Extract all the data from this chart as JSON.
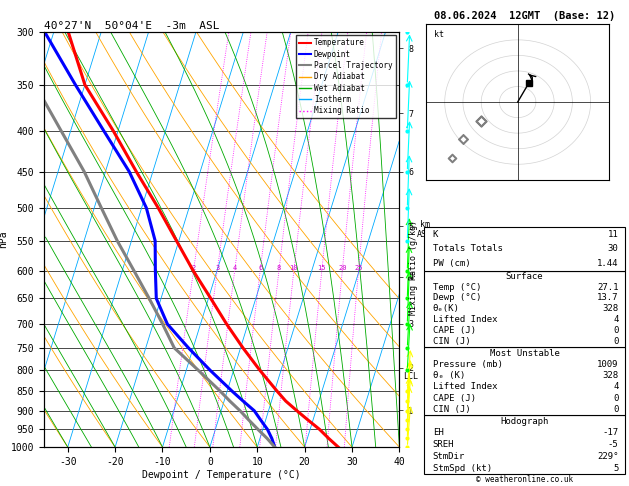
{
  "title_left": "40°27'N  50°04'E  -3m  ASL",
  "title_right": "08.06.2024  12GMT  (Base: 12)",
  "xlabel": "Dewpoint / Temperature (°C)",
  "ylabel_left": "hPa",
  "x_min": -35,
  "x_max": 40,
  "pressure_ticks": [
    300,
    350,
    400,
    450,
    500,
    550,
    600,
    650,
    700,
    750,
    800,
    850,
    900,
    950,
    1000
  ],
  "x_ticks": [
    -30,
    -20,
    -10,
    0,
    10,
    20,
    30,
    40
  ],
  "skew_factor": 22.5,
  "temp_profile_p": [
    1000,
    975,
    950,
    925,
    900,
    875,
    850,
    800,
    750,
    700,
    650,
    600,
    550,
    500,
    450,
    400,
    350,
    300
  ],
  "temp_profile_t": [
    27.1,
    24.5,
    22.0,
    19.0,
    16.0,
    13.0,
    10.5,
    5.5,
    0.5,
    -4.5,
    -9.5,
    -15.0,
    -20.5,
    -26.5,
    -33.5,
    -41.0,
    -50.0,
    -57.0
  ],
  "dewp_profile_p": [
    1000,
    975,
    950,
    925,
    900,
    875,
    850,
    800,
    750,
    700,
    650,
    600,
    550,
    500,
    450,
    400,
    350,
    300
  ],
  "dewp_profile_t": [
    13.7,
    12.5,
    11.0,
    9.0,
    7.0,
    4.0,
    1.0,
    -5.0,
    -11.0,
    -17.0,
    -21.0,
    -23.0,
    -25.0,
    -29.0,
    -35.0,
    -43.0,
    -52.0,
    -62.0
  ],
  "parcel_profile_p": [
    1000,
    975,
    950,
    925,
    900,
    875,
    850,
    800,
    750,
    700,
    650,
    600,
    550,
    500,
    450,
    400,
    350,
    300
  ],
  "parcel_profile_t": [
    13.7,
    11.5,
    9.0,
    6.5,
    4.0,
    1.2,
    -1.5,
    -7.5,
    -14.0,
    -18.0,
    -22.5,
    -27.5,
    -33.0,
    -38.5,
    -44.5,
    -52.0,
    -60.5,
    -70.0
  ],
  "lcl_pressure": 815,
  "km_ticks": [
    1,
    2,
    3,
    4,
    5,
    6,
    7,
    8
  ],
  "km_pressures": [
    899,
    795,
    699,
    610,
    527,
    450,
    380,
    315
  ],
  "mixing_ratio_values": [
    2,
    3,
    4,
    6,
    8,
    10,
    15,
    20,
    25
  ],
  "wind_barbs_p": [
    1000,
    975,
    950,
    925,
    900,
    875,
    850,
    800,
    750,
    700,
    650,
    600,
    550,
    500,
    450,
    400,
    350,
    300
  ],
  "wind_barbs_u": [
    2,
    1,
    1,
    2,
    2,
    3,
    3,
    3,
    3,
    2,
    2,
    2,
    2,
    2,
    3,
    3,
    3,
    4
  ],
  "wind_barbs_v": [
    -2,
    -2,
    -2,
    -2,
    -3,
    -3,
    -3,
    -4,
    -4,
    -4,
    -4,
    -4,
    -4,
    -4,
    -5,
    -5,
    -5,
    -5
  ],
  "colors": {
    "temperature": "#ff0000",
    "dewpoint": "#0000ff",
    "parcel": "#808080",
    "dry_adiabat": "#ffa500",
    "wet_adiabat": "#00aa00",
    "isotherm": "#00aaff",
    "mixing_ratio": "#ff00ff",
    "background": "#ffffff",
    "wind_barb_low": "#ffff00",
    "wind_barb_mid": "#00ff00",
    "wind_barb_high": "#00ffff"
  },
  "table_data": {
    "K": "11",
    "Totals Totals": "30",
    "PW (cm)": "1.44",
    "surface_temp": "27.1",
    "surface_dewp": "13.7",
    "surface_theta_e": "328",
    "surface_li": "4",
    "surface_cape": "0",
    "surface_cin": "0",
    "mu_pressure": "1009",
    "mu_theta_e": "328",
    "mu_li": "4",
    "mu_cape": "0",
    "mu_cin": "0",
    "EH": "-17",
    "SREH": "-5",
    "StmDir": "229°",
    "StmSpd": "5"
  }
}
